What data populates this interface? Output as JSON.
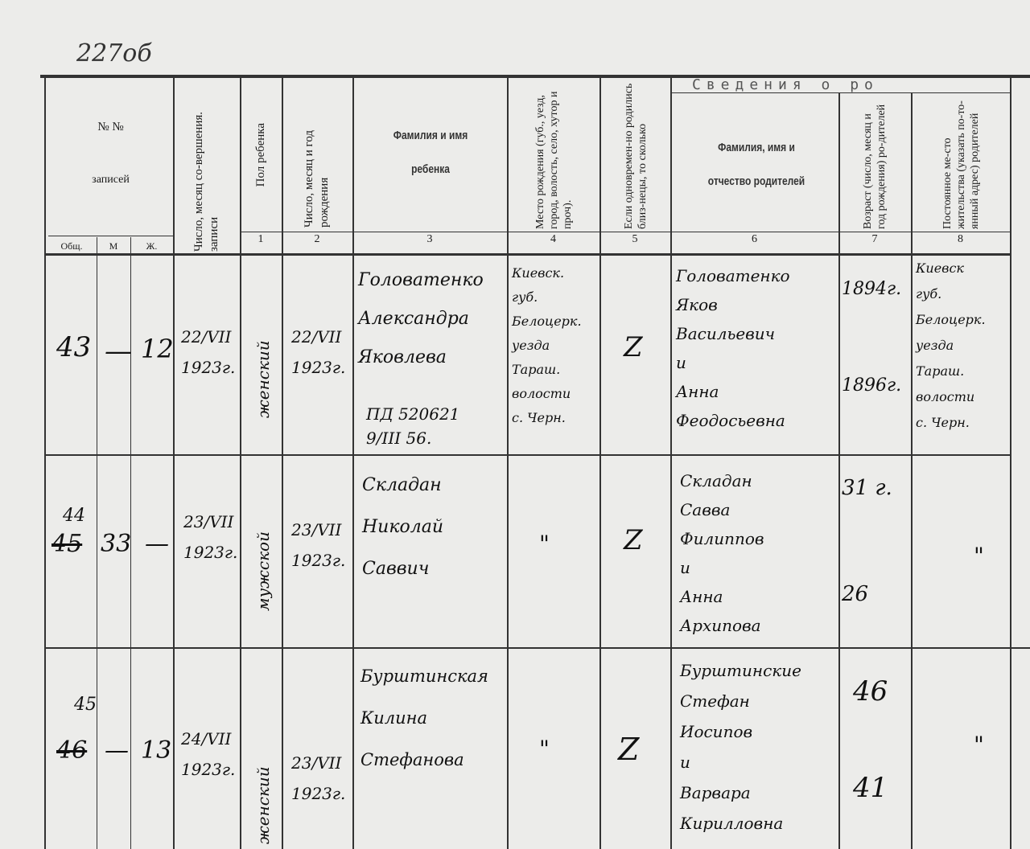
{
  "page_mark": "227об",
  "header": {
    "records_no": "№ №",
    "records": "записей",
    "sub_total": "Общ.",
    "sub_m": "М",
    "sub_f": "Ж.",
    "record_date": "Число, месяц со-вершения. записи",
    "sex": "Пол ребенка",
    "birth_date": "Число, месяц и год рождения",
    "child_name": "Фамилия и имя ребенка",
    "birth_place": "Место рождения (губ., уезд, город, волость, село, хутор и проч).",
    "twins": "Если одновремен-но родились близ-нецы, то сколько",
    "section_title": "Сведения о ро",
    "parents_name": "Фамилия, имя и отчество родителей",
    "parents_age": "Возраст (число, месяц и год рождения) ро-дителей",
    "residence": "Постоянное ме-сто жительства (указать по-то-янный адрес) родителей",
    "col_numbers": [
      "1",
      "2",
      "3",
      "4",
      "5",
      "6",
      "7",
      "8"
    ]
  },
  "rows": [
    {
      "total": "43",
      "m": "—",
      "f": "12",
      "record_date": "22/VII\n1923г.",
      "sex": "женский",
      "birth_date": "22/VII\n1923г.",
      "child_name": "Головатенко\nАлександра\nЯковлева",
      "child_note": "ПД 520621\n9/III 56.",
      "birth_place": "Киевск.\nгуб.\nБелоцерк.\nуезда\nТараш.\nволости\nс. Черн.",
      "twins": "Z",
      "parents": "Головатенко\nЯков\nВасильевич\nи\nАнна\nФеодосьевна",
      "ages": "1894г.\n\n\n1896г.",
      "residence": "Киевск\nгуб.\nБелоцерк.\nуезда\nТараш.\nволости\nс. Черн."
    },
    {
      "total": "44",
      "total_crossed": "45",
      "m": "33",
      "f": "—",
      "record_date": "23/VII\n1923г.",
      "sex": "мужской",
      "birth_date": "23/VII\n1923г.",
      "child_name": "Складан\nНиколай\nСаввич",
      "child_note": "",
      "birth_place": "\"",
      "twins": "Z",
      "parents": "Складан\nСавва\nФилиппов\nи\nАнна\nАрхипова",
      "ages": "31 г.\n\n\n26",
      "residence": "\""
    },
    {
      "total": "45",
      "total_crossed": "46",
      "m": "—",
      "f": "13",
      "record_date": "24/VII\n1923г.",
      "sex": "женский",
      "birth_date": "23/VII\n1923г.",
      "child_name": "Бурштинская\nКилина\nСтефанова",
      "child_note": "",
      "birth_place": "\"",
      "twins": "Z",
      "parents": "Бурштинские\nСтефан\nИосипов\nи\nВарвара\nКирилловна",
      "ages": "46\n\n\n41",
      "residence": "\""
    }
  ]
}
